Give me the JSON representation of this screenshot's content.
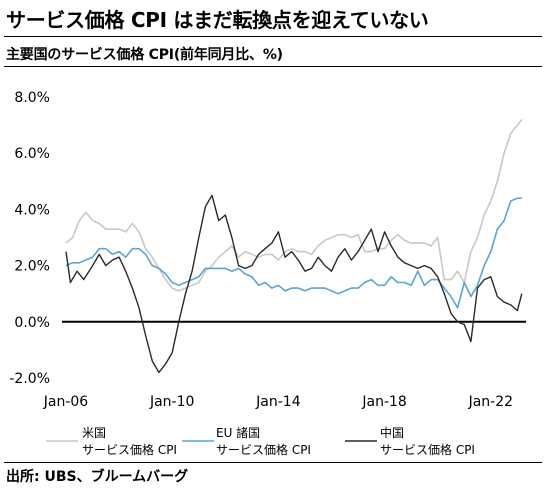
{
  "title": "サービス価格 CPI はまだ転換点を迎えていない",
  "subtitle": "主要国のサービス価格 CPI(前年同月比、%)",
  "source": "出所: UBS、ブルームバーグ",
  "colors": {
    "us": "#c8c8c8",
    "eu": "#5aa5d8",
    "cn": "#2a2a2a",
    "zero": "#000000"
  },
  "chart_data": {
    "type": "line",
    "xlim": [
      "2006-01",
      "2023-04"
    ],
    "ylim": [
      -2.0,
      8.0
    ],
    "x_ticks": [
      "Jan-06",
      "Jan-10",
      "Jan-14",
      "Jan-18",
      "Jan-22"
    ],
    "y_ticks": [
      "8.0%",
      "6.0%",
      "4.0%",
      "2.0%",
      "0.0%",
      "-2.0%"
    ],
    "grid": false,
    "legend_position": "bottom",
    "series": [
      {
        "key": "us",
        "name": "米国\nサービス価格 CPI",
        "label_lines": [
          "米国",
          "サービス価格 CPI"
        ],
        "points": [
          [
            "2006-01",
            2.8
          ],
          [
            "2006-04",
            3.0
          ],
          [
            "2006-07",
            3.6
          ],
          [
            "2006-10",
            3.9
          ],
          [
            "2007-01",
            3.6
          ],
          [
            "2007-04",
            3.5
          ],
          [
            "2007-07",
            3.3
          ],
          [
            "2007-10",
            3.3
          ],
          [
            "2008-01",
            3.3
          ],
          [
            "2008-04",
            3.2
          ],
          [
            "2008-07",
            3.5
          ],
          [
            "2008-10",
            3.2
          ],
          [
            "2009-01",
            2.6
          ],
          [
            "2009-04",
            2.3
          ],
          [
            "2009-07",
            1.9
          ],
          [
            "2009-10",
            1.5
          ],
          [
            "2010-01",
            1.2
          ],
          [
            "2010-04",
            1.1
          ],
          [
            "2010-07",
            1.2
          ],
          [
            "2010-10",
            1.3
          ],
          [
            "2011-01",
            1.4
          ],
          [
            "2011-04",
            1.8
          ],
          [
            "2011-07",
            2.0
          ],
          [
            "2011-10",
            2.3
          ],
          [
            "2012-01",
            2.5
          ],
          [
            "2012-04",
            2.7
          ],
          [
            "2012-07",
            2.3
          ],
          [
            "2012-10",
            2.5
          ],
          [
            "2013-01",
            2.4
          ],
          [
            "2013-04",
            2.3
          ],
          [
            "2013-07",
            2.4
          ],
          [
            "2013-10",
            2.4
          ],
          [
            "2014-01",
            2.2
          ],
          [
            "2014-04",
            2.5
          ],
          [
            "2014-07",
            2.6
          ],
          [
            "2014-10",
            2.5
          ],
          [
            "2015-01",
            2.5
          ],
          [
            "2015-04",
            2.4
          ],
          [
            "2015-07",
            2.7
          ],
          [
            "2015-10",
            2.9
          ],
          [
            "2016-01",
            3.0
          ],
          [
            "2016-04",
            3.1
          ],
          [
            "2016-07",
            3.1
          ],
          [
            "2016-10",
            3.0
          ],
          [
            "2017-01",
            3.1
          ],
          [
            "2017-04",
            2.5
          ],
          [
            "2017-07",
            2.5
          ],
          [
            "2017-10",
            2.6
          ],
          [
            "2018-01",
            2.6
          ],
          [
            "2018-04",
            2.9
          ],
          [
            "2018-07",
            3.1
          ],
          [
            "2018-10",
            2.9
          ],
          [
            "2019-01",
            2.8
          ],
          [
            "2019-04",
            2.8
          ],
          [
            "2019-07",
            2.8
          ],
          [
            "2019-10",
            2.7
          ],
          [
            "2020-01",
            3.0
          ],
          [
            "2020-04",
            1.5
          ],
          [
            "2020-07",
            1.5
          ],
          [
            "2020-10",
            1.8
          ],
          [
            "2021-01",
            1.4
          ],
          [
            "2021-04",
            2.5
          ],
          [
            "2021-07",
            3.0
          ],
          [
            "2021-10",
            3.8
          ],
          [
            "2022-01",
            4.3
          ],
          [
            "2022-04",
            5.0
          ],
          [
            "2022-07",
            6.0
          ],
          [
            "2022-10",
            6.7
          ],
          [
            "2023-01",
            7.0
          ],
          [
            "2023-03",
            7.2
          ]
        ]
      },
      {
        "key": "eu",
        "name": "EU 諸国\nサービス価格 CPI",
        "label_lines": [
          "EU 諸国",
          "サービス価格 CPI"
        ],
        "points": [
          [
            "2006-01",
            2.0
          ],
          [
            "2006-04",
            2.1
          ],
          [
            "2006-07",
            2.1
          ],
          [
            "2006-10",
            2.2
          ],
          [
            "2007-01",
            2.3
          ],
          [
            "2007-04",
            2.6
          ],
          [
            "2007-07",
            2.6
          ],
          [
            "2007-10",
            2.4
          ],
          [
            "2008-01",
            2.5
          ],
          [
            "2008-04",
            2.3
          ],
          [
            "2008-07",
            2.6
          ],
          [
            "2008-10",
            2.6
          ],
          [
            "2009-01",
            2.4
          ],
          [
            "2009-04",
            2.0
          ],
          [
            "2009-07",
            1.9
          ],
          [
            "2009-10",
            1.7
          ],
          [
            "2010-01",
            1.4
          ],
          [
            "2010-04",
            1.3
          ],
          [
            "2010-07",
            1.4
          ],
          [
            "2010-10",
            1.5
          ],
          [
            "2011-01",
            1.6
          ],
          [
            "2011-04",
            1.9
          ],
          [
            "2011-07",
            1.9
          ],
          [
            "2011-10",
            1.9
          ],
          [
            "2012-01",
            1.9
          ],
          [
            "2012-04",
            1.8
          ],
          [
            "2012-07",
            1.9
          ],
          [
            "2012-10",
            1.7
          ],
          [
            "2013-01",
            1.6
          ],
          [
            "2013-04",
            1.3
          ],
          [
            "2013-07",
            1.4
          ],
          [
            "2013-10",
            1.2
          ],
          [
            "2014-01",
            1.3
          ],
          [
            "2014-04",
            1.1
          ],
          [
            "2014-07",
            1.2
          ],
          [
            "2014-10",
            1.2
          ],
          [
            "2015-01",
            1.1
          ],
          [
            "2015-04",
            1.2
          ],
          [
            "2015-07",
            1.2
          ],
          [
            "2015-10",
            1.2
          ],
          [
            "2016-01",
            1.1
          ],
          [
            "2016-04",
            1.0
          ],
          [
            "2016-07",
            1.1
          ],
          [
            "2016-10",
            1.2
          ],
          [
            "2017-01",
            1.2
          ],
          [
            "2017-04",
            1.4
          ],
          [
            "2017-07",
            1.5
          ],
          [
            "2017-10",
            1.3
          ],
          [
            "2018-01",
            1.3
          ],
          [
            "2018-04",
            1.6
          ],
          [
            "2018-07",
            1.4
          ],
          [
            "2018-10",
            1.4
          ],
          [
            "2019-01",
            1.3
          ],
          [
            "2019-04",
            1.8
          ],
          [
            "2019-07",
            1.3
          ],
          [
            "2019-10",
            1.5
          ],
          [
            "2020-01",
            1.5
          ],
          [
            "2020-04",
            1.2
          ],
          [
            "2020-07",
            0.9
          ],
          [
            "2020-10",
            0.5
          ],
          [
            "2021-01",
            1.4
          ],
          [
            "2021-04",
            0.9
          ],
          [
            "2021-07",
            1.3
          ],
          [
            "2021-10",
            2.0
          ],
          [
            "2022-01",
            2.5
          ],
          [
            "2022-04",
            3.3
          ],
          [
            "2022-07",
            3.6
          ],
          [
            "2022-10",
            4.3
          ],
          [
            "2023-01",
            4.4
          ],
          [
            "2023-03",
            4.4
          ]
        ]
      },
      {
        "key": "cn",
        "name": "中国\nサービス価格 CPI",
        "label_lines": [
          "中国",
          "サービス価格 CPI"
        ],
        "points": [
          [
            "2006-01",
            2.5
          ],
          [
            "2006-03",
            1.4
          ],
          [
            "2006-06",
            1.8
          ],
          [
            "2006-09",
            1.5
          ],
          [
            "2007-01",
            2.0
          ],
          [
            "2007-04",
            2.4
          ],
          [
            "2007-07",
            2.0
          ],
          [
            "2007-10",
            2.2
          ],
          [
            "2008-01",
            2.3
          ],
          [
            "2008-04",
            1.8
          ],
          [
            "2008-07",
            1.2
          ],
          [
            "2008-10",
            0.5
          ],
          [
            "2009-01",
            -0.5
          ],
          [
            "2009-04",
            -1.4
          ],
          [
            "2009-07",
            -1.8
          ],
          [
            "2009-10",
            -1.5
          ],
          [
            "2010-01",
            -1.1
          ],
          [
            "2010-04",
            0.0
          ],
          [
            "2010-07",
            1.0
          ],
          [
            "2010-10",
            1.8
          ],
          [
            "2011-01",
            3.0
          ],
          [
            "2011-04",
            4.1
          ],
          [
            "2011-07",
            4.5
          ],
          [
            "2011-10",
            3.6
          ],
          [
            "2012-01",
            3.8
          ],
          [
            "2012-04",
            3.0
          ],
          [
            "2012-07",
            2.0
          ],
          [
            "2012-10",
            1.9
          ],
          [
            "2013-01",
            2.0
          ],
          [
            "2013-04",
            2.4
          ],
          [
            "2013-07",
            2.6
          ],
          [
            "2013-10",
            2.8
          ],
          [
            "2014-01",
            3.2
          ],
          [
            "2014-04",
            2.3
          ],
          [
            "2014-07",
            2.5
          ],
          [
            "2014-10",
            2.2
          ],
          [
            "2015-01",
            1.8
          ],
          [
            "2015-04",
            1.9
          ],
          [
            "2015-07",
            2.3
          ],
          [
            "2015-10",
            2.0
          ],
          [
            "2016-01",
            1.8
          ],
          [
            "2016-04",
            2.3
          ],
          [
            "2016-07",
            2.6
          ],
          [
            "2016-10",
            2.2
          ],
          [
            "2017-01",
            2.5
          ],
          [
            "2017-04",
            2.9
          ],
          [
            "2017-07",
            3.3
          ],
          [
            "2017-10",
            2.5
          ],
          [
            "2018-01",
            3.2
          ],
          [
            "2018-04",
            2.7
          ],
          [
            "2018-07",
            2.3
          ],
          [
            "2018-10",
            2.1
          ],
          [
            "2019-01",
            2.0
          ],
          [
            "2019-04",
            1.9
          ],
          [
            "2019-07",
            2.0
          ],
          [
            "2019-10",
            1.9
          ],
          [
            "2020-01",
            1.6
          ],
          [
            "2020-04",
            1.0
          ],
          [
            "2020-07",
            0.3
          ],
          [
            "2020-10",
            0.0
          ],
          [
            "2021-01",
            -0.1
          ],
          [
            "2021-04",
            -0.7
          ],
          [
            "2021-07",
            1.2
          ],
          [
            "2021-10",
            1.5
          ],
          [
            "2022-01",
            1.6
          ],
          [
            "2022-04",
            0.9
          ],
          [
            "2022-07",
            0.7
          ],
          [
            "2022-10",
            0.6
          ],
          [
            "2023-01",
            0.4
          ],
          [
            "2023-03",
            1.0
          ]
        ]
      }
    ]
  }
}
